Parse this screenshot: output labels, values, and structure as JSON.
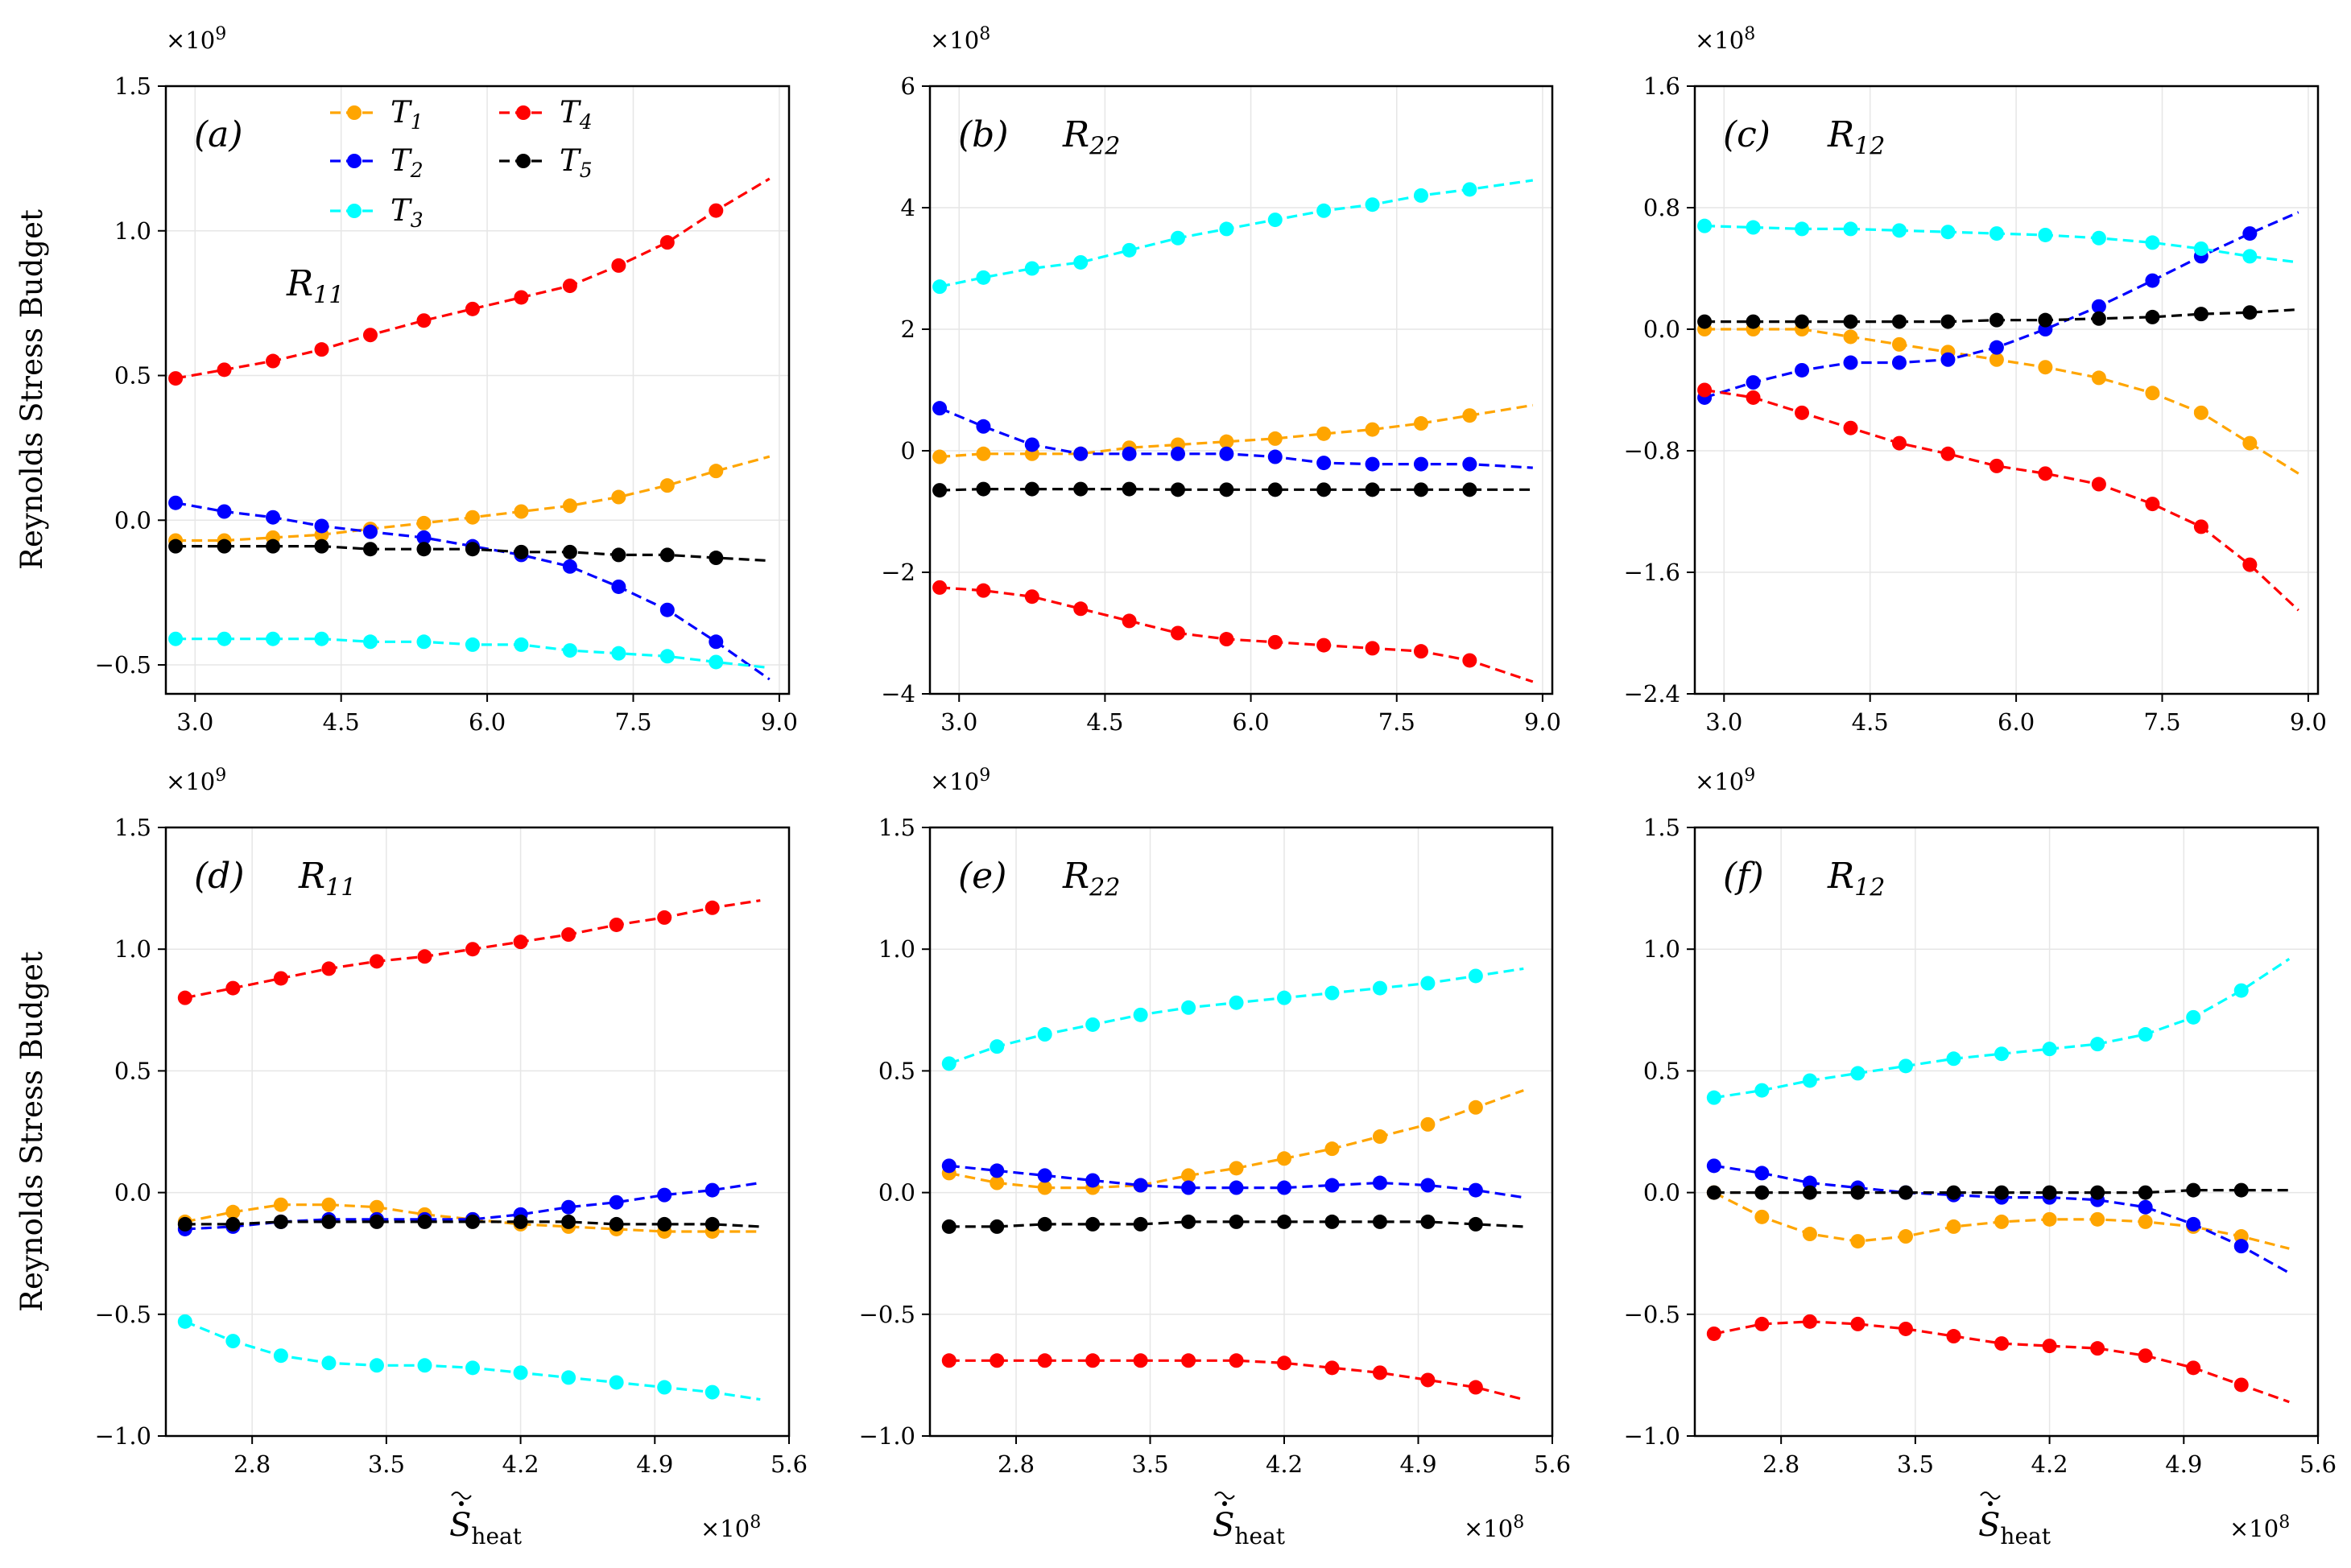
{
  "figure": {
    "ylabel": "Reynolds Stress Budget",
    "xlabel_main": "S",
    "xlabel_sub": "heat",
    "legend": [
      {
        "key": "T1",
        "base": "T",
        "sub": "1",
        "color": "#FFA500"
      },
      {
        "key": "T2",
        "base": "T",
        "sub": "2",
        "color": "#0000FF"
      },
      {
        "key": "T3",
        "base": "T",
        "sub": "3",
        "color": "#00FFFF"
      },
      {
        "key": "T4",
        "base": "T",
        "sub": "4",
        "color": "#FF0000"
      },
      {
        "key": "T5",
        "base": "T",
        "sub": "5",
        "color": "#000000"
      }
    ]
  },
  "chart_data": [
    {
      "type": "line",
      "panel": "(a)",
      "subtitle_base": "R",
      "subtitle_sub": "11",
      "y_multiplier": {
        "base": "×10",
        "exp": "9"
      },
      "x_multiplier": null,
      "xlim": [
        2.7,
        9.1
      ],
      "ylim": [
        -0.6,
        1.5
      ],
      "xticks": [
        3.0,
        4.5,
        6.0,
        7.5,
        9.0
      ],
      "xtick_labels": [
        "3.0",
        "4.5",
        "6.0",
        "7.5",
        "9.0"
      ],
      "yticks": [
        -0.5,
        0.0,
        0.5,
        1.0,
        1.5
      ],
      "ytick_labels": [
        "−0.5",
        "0.0",
        "0.5",
        "1.0",
        "1.5"
      ],
      "x": [
        2.8,
        3.3,
        3.8,
        4.3,
        4.8,
        5.35,
        5.85,
        6.35,
        6.85,
        7.35,
        7.85,
        8.35,
        8.9
      ],
      "series": [
        {
          "name": "T1",
          "values": [
            -0.07,
            -0.07,
            -0.06,
            -0.05,
            -0.03,
            -0.01,
            0.01,
            0.03,
            0.05,
            0.08,
            0.12,
            0.17,
            0.22
          ]
        },
        {
          "name": "T2",
          "values": [
            0.06,
            0.03,
            0.01,
            -0.02,
            -0.04,
            -0.06,
            -0.09,
            -0.12,
            -0.16,
            -0.23,
            -0.31,
            -0.42,
            -0.55
          ]
        },
        {
          "name": "T3",
          "values": [
            -0.41,
            -0.41,
            -0.41,
            -0.41,
            -0.42,
            -0.42,
            -0.43,
            -0.43,
            -0.45,
            -0.46,
            -0.47,
            -0.49,
            -0.51
          ]
        },
        {
          "name": "T4",
          "values": [
            0.49,
            0.52,
            0.55,
            0.59,
            0.64,
            0.69,
            0.73,
            0.77,
            0.81,
            0.88,
            0.96,
            1.07,
            1.18
          ]
        },
        {
          "name": "T5",
          "values": [
            -0.09,
            -0.09,
            -0.09,
            -0.09,
            -0.1,
            -0.1,
            -0.1,
            -0.11,
            -0.11,
            -0.12,
            -0.12,
            -0.13,
            -0.14
          ]
        }
      ]
    },
    {
      "type": "line",
      "panel": "(b)",
      "subtitle_base": "R",
      "subtitle_sub": "22",
      "y_multiplier": {
        "base": "×10",
        "exp": "8"
      },
      "x_multiplier": null,
      "xlim": [
        2.7,
        9.1
      ],
      "ylim": [
        -4,
        6
      ],
      "xticks": [
        3.0,
        4.5,
        6.0,
        7.5,
        9.0
      ],
      "xtick_labels": [
        "3.0",
        "4.5",
        "6.0",
        "7.5",
        "9.0"
      ],
      "yticks": [
        -4,
        -2,
        0,
        2,
        4,
        6
      ],
      "ytick_labels": [
        "−4",
        "−2",
        "0",
        "2",
        "4",
        "6"
      ],
      "x": [
        2.8,
        3.25,
        3.75,
        4.25,
        4.75,
        5.25,
        5.75,
        6.25,
        6.75,
        7.25,
        7.75,
        8.25,
        8.9
      ],
      "series": [
        {
          "name": "T1",
          "values": [
            -0.1,
            -0.05,
            -0.05,
            -0.05,
            0.05,
            0.1,
            0.15,
            0.2,
            0.28,
            0.35,
            0.45,
            0.58,
            0.75
          ]
        },
        {
          "name": "T2",
          "values": [
            0.7,
            0.4,
            0.1,
            -0.05,
            -0.05,
            -0.05,
            -0.05,
            -0.1,
            -0.2,
            -0.22,
            -0.22,
            -0.22,
            -0.28
          ]
        },
        {
          "name": "T3",
          "values": [
            2.7,
            2.85,
            3.0,
            3.1,
            3.3,
            3.5,
            3.65,
            3.8,
            3.95,
            4.05,
            4.2,
            4.3,
            4.45
          ]
        },
        {
          "name": "T4",
          "values": [
            -2.25,
            -2.3,
            -2.4,
            -2.6,
            -2.8,
            -3.0,
            -3.1,
            -3.15,
            -3.2,
            -3.25,
            -3.3,
            -3.45,
            -3.8
          ]
        },
        {
          "name": "T5",
          "values": [
            -0.65,
            -0.63,
            -0.63,
            -0.63,
            -0.63,
            -0.64,
            -0.64,
            -0.64,
            -0.64,
            -0.64,
            -0.64,
            -0.64,
            -0.64
          ]
        }
      ]
    },
    {
      "type": "line",
      "panel": "(c)",
      "subtitle_base": "R",
      "subtitle_sub": "12",
      "y_multiplier": {
        "base": "×10",
        "exp": "8"
      },
      "x_multiplier": null,
      "xlim": [
        2.7,
        9.1
      ],
      "ylim": [
        -2.4,
        1.6
      ],
      "xticks": [
        3.0,
        4.5,
        6.0,
        7.5,
        9.0
      ],
      "xtick_labels": [
        "3.0",
        "4.5",
        "6.0",
        "7.5",
        "9.0"
      ],
      "yticks": [
        -2.4,
        -1.6,
        -0.8,
        0.0,
        0.8,
        1.6
      ],
      "ytick_labels": [
        "−2.4",
        "−1.6",
        "−0.8",
        "0.0",
        "0.8",
        "1.6"
      ],
      "x": [
        2.8,
        3.3,
        3.8,
        4.3,
        4.8,
        5.3,
        5.8,
        6.3,
        6.85,
        7.4,
        7.9,
        8.4,
        8.9
      ],
      "series": [
        {
          "name": "T1",
          "values": [
            0.0,
            0.0,
            0.0,
            -0.05,
            -0.1,
            -0.15,
            -0.2,
            -0.25,
            -0.32,
            -0.42,
            -0.55,
            -0.75,
            -0.95
          ]
        },
        {
          "name": "T2",
          "values": [
            -0.45,
            -0.35,
            -0.27,
            -0.22,
            -0.22,
            -0.2,
            -0.12,
            0.0,
            0.15,
            0.32,
            0.48,
            0.63,
            0.77
          ]
        },
        {
          "name": "T3",
          "values": [
            0.68,
            0.67,
            0.66,
            0.66,
            0.65,
            0.64,
            0.63,
            0.62,
            0.6,
            0.57,
            0.53,
            0.48,
            0.44
          ]
        },
        {
          "name": "T4",
          "values": [
            -0.4,
            -0.45,
            -0.55,
            -0.65,
            -0.75,
            -0.82,
            -0.9,
            -0.95,
            -1.02,
            -1.15,
            -1.3,
            -1.55,
            -1.85
          ]
        },
        {
          "name": "T5",
          "values": [
            0.05,
            0.05,
            0.05,
            0.05,
            0.05,
            0.05,
            0.06,
            0.06,
            0.07,
            0.08,
            0.1,
            0.11,
            0.13
          ]
        }
      ]
    },
    {
      "type": "line",
      "panel": "(d)",
      "subtitle_base": "R",
      "subtitle_sub": "11",
      "y_multiplier": {
        "base": "×10",
        "exp": "9"
      },
      "x_multiplier": {
        "base": "×10",
        "exp": "8"
      },
      "xlim": [
        2.35,
        5.6
      ],
      "ylim": [
        -1.0,
        1.5
      ],
      "xticks": [
        2.8,
        3.5,
        4.2,
        4.9,
        5.6
      ],
      "xtick_labels": [
        "2.8",
        "3.5",
        "4.2",
        "4.9",
        "5.6"
      ],
      "yticks": [
        -1.0,
        -0.5,
        0.0,
        0.5,
        1.0,
        1.5
      ],
      "ytick_labels": [
        "−1.0",
        "−0.5",
        "0.0",
        "0.5",
        "1.0",
        "1.5"
      ],
      "x": [
        2.45,
        2.7,
        2.95,
        3.2,
        3.45,
        3.7,
        3.95,
        4.2,
        4.45,
        4.7,
        4.95,
        5.2,
        5.45
      ],
      "series": [
        {
          "name": "T1",
          "values": [
            -0.12,
            -0.08,
            -0.05,
            -0.05,
            -0.06,
            -0.09,
            -0.11,
            -0.13,
            -0.14,
            -0.15,
            -0.16,
            -0.16,
            -0.16
          ]
        },
        {
          "name": "T2",
          "values": [
            -0.15,
            -0.14,
            -0.12,
            -0.11,
            -0.11,
            -0.11,
            -0.11,
            -0.09,
            -0.06,
            -0.04,
            -0.01,
            0.01,
            0.04
          ]
        },
        {
          "name": "T3",
          "values": [
            -0.53,
            -0.61,
            -0.67,
            -0.7,
            -0.71,
            -0.71,
            -0.72,
            -0.74,
            -0.76,
            -0.78,
            -0.8,
            -0.82,
            -0.85
          ]
        },
        {
          "name": "T4",
          "values": [
            0.8,
            0.84,
            0.88,
            0.92,
            0.95,
            0.97,
            1.0,
            1.03,
            1.06,
            1.1,
            1.13,
            1.17,
            1.2
          ]
        },
        {
          "name": "T5",
          "values": [
            -0.13,
            -0.13,
            -0.12,
            -0.12,
            -0.12,
            -0.12,
            -0.12,
            -0.12,
            -0.12,
            -0.13,
            -0.13,
            -0.13,
            -0.14
          ]
        }
      ]
    },
    {
      "type": "line",
      "panel": "(e)",
      "subtitle_base": "R",
      "subtitle_sub": "22",
      "y_multiplier": {
        "base": "×10",
        "exp": "9"
      },
      "x_multiplier": {
        "base": "×10",
        "exp": "8"
      },
      "xlim": [
        2.35,
        5.6
      ],
      "ylim": [
        -1.0,
        1.5
      ],
      "xticks": [
        2.8,
        3.5,
        4.2,
        4.9,
        5.6
      ],
      "xtick_labels": [
        "2.8",
        "3.5",
        "4.2",
        "4.9",
        "5.6"
      ],
      "yticks": [
        -1.0,
        -0.5,
        0.0,
        0.5,
        1.0,
        1.5
      ],
      "ytick_labels": [
        "−1.0",
        "−0.5",
        "0.0",
        "0.5",
        "1.0",
        "1.5"
      ],
      "x": [
        2.45,
        2.7,
        2.95,
        3.2,
        3.45,
        3.7,
        3.95,
        4.2,
        4.45,
        4.7,
        4.95,
        5.2,
        5.45
      ],
      "series": [
        {
          "name": "T1",
          "values": [
            0.08,
            0.04,
            0.02,
            0.02,
            0.03,
            0.07,
            0.1,
            0.14,
            0.18,
            0.23,
            0.28,
            0.35,
            0.42
          ]
        },
        {
          "name": "T2",
          "values": [
            0.11,
            0.09,
            0.07,
            0.05,
            0.03,
            0.02,
            0.02,
            0.02,
            0.03,
            0.04,
            0.03,
            0.01,
            -0.02
          ]
        },
        {
          "name": "T3",
          "values": [
            0.53,
            0.6,
            0.65,
            0.69,
            0.73,
            0.76,
            0.78,
            0.8,
            0.82,
            0.84,
            0.86,
            0.89,
            0.92
          ]
        },
        {
          "name": "T4",
          "values": [
            -0.69,
            -0.69,
            -0.69,
            -0.69,
            -0.69,
            -0.69,
            -0.69,
            -0.7,
            -0.72,
            -0.74,
            -0.77,
            -0.8,
            -0.85
          ]
        },
        {
          "name": "T5",
          "values": [
            -0.14,
            -0.14,
            -0.13,
            -0.13,
            -0.13,
            -0.12,
            -0.12,
            -0.12,
            -0.12,
            -0.12,
            -0.12,
            -0.13,
            -0.14
          ]
        }
      ]
    },
    {
      "type": "line",
      "panel": "(f)",
      "subtitle_base": "R",
      "subtitle_sub": "12",
      "y_multiplier": {
        "base": "×10",
        "exp": "9"
      },
      "x_multiplier": {
        "base": "×10",
        "exp": "8"
      },
      "xlim": [
        2.35,
        5.6
      ],
      "ylim": [
        -1.0,
        1.5
      ],
      "xticks": [
        2.8,
        3.5,
        4.2,
        4.9,
        5.6
      ],
      "xtick_labels": [
        "2.8",
        "3.5",
        "4.2",
        "4.9",
        "5.6"
      ],
      "yticks": [
        -1.0,
        -0.5,
        0.0,
        0.5,
        1.0,
        1.5
      ],
      "ytick_labels": [
        "−1.0",
        "−0.5",
        "0.0",
        "0.5",
        "1.0",
        "1.5"
      ],
      "x": [
        2.45,
        2.7,
        2.95,
        3.2,
        3.45,
        3.7,
        3.95,
        4.2,
        4.45,
        4.7,
        4.95,
        5.2,
        5.45
      ],
      "series": [
        {
          "name": "T1",
          "values": [
            0.0,
            -0.1,
            -0.17,
            -0.2,
            -0.18,
            -0.14,
            -0.12,
            -0.11,
            -0.11,
            -0.12,
            -0.14,
            -0.18,
            -0.23
          ]
        },
        {
          "name": "T2",
          "values": [
            0.11,
            0.08,
            0.04,
            0.02,
            0.0,
            -0.01,
            -0.02,
            -0.02,
            -0.03,
            -0.06,
            -0.13,
            -0.22,
            -0.33
          ]
        },
        {
          "name": "T3",
          "values": [
            0.39,
            0.42,
            0.46,
            0.49,
            0.52,
            0.55,
            0.57,
            0.59,
            0.61,
            0.65,
            0.72,
            0.83,
            0.96
          ]
        },
        {
          "name": "T4",
          "values": [
            -0.58,
            -0.54,
            -0.53,
            -0.54,
            -0.56,
            -0.59,
            -0.62,
            -0.63,
            -0.64,
            -0.67,
            -0.72,
            -0.79,
            -0.86
          ]
        },
        {
          "name": "T5",
          "values": [
            0.0,
            0.0,
            0.0,
            0.0,
            0.0,
            0.0,
            0.0,
            0.0,
            0.0,
            0.0,
            0.01,
            0.01,
            0.01
          ]
        }
      ]
    }
  ]
}
